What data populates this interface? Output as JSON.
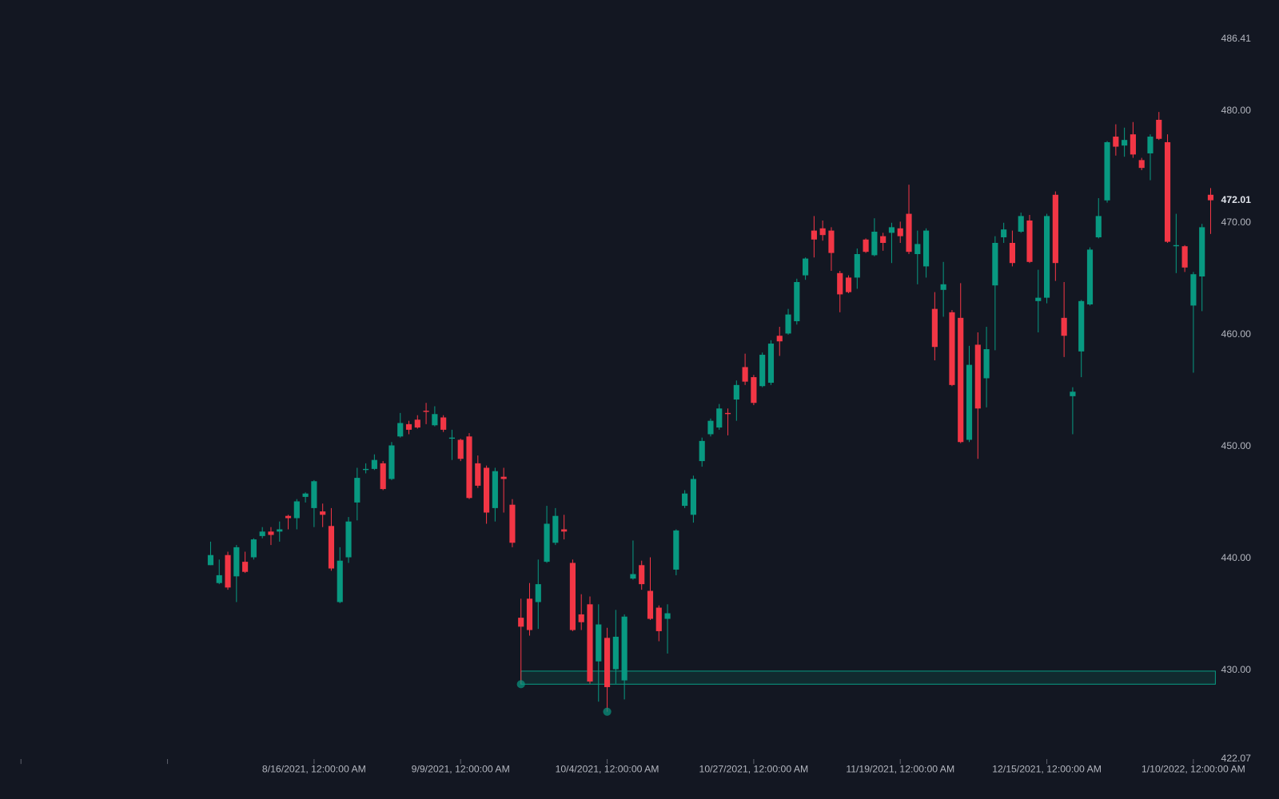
{
  "chart_data": {
    "type": "candlestick",
    "up_color": "#089981",
    "down_color": "#f23645",
    "open": [
      439.4,
      437.8,
      440.3,
      438.4,
      439.7,
      440.1,
      442.0,
      442.4,
      442.4,
      443.8,
      443.6,
      445.5,
      444.5,
      444.2,
      442.9,
      436.1,
      440.1,
      445.0,
      447.9,
      448.0,
      448.5,
      447.1,
      450.9,
      452.0,
      452.4,
      453.2,
      451.9,
      452.6,
      450.7,
      450.6,
      450.9,
      448.5,
      448.1,
      444.5,
      447.3,
      444.8,
      434.7,
      436.4,
      436.1,
      439.7,
      441.4,
      442.6,
      439.6,
      435.0,
      435.9,
      430.8,
      432.9,
      430.1,
      429.1,
      438.2,
      439.4,
      437.1,
      435.6,
      434.6,
      439.0,
      444.7,
      443.9,
      448.7,
      451.1,
      451.7,
      453.0,
      454.2,
      457.1,
      456.2,
      455.4,
      455.7,
      459.9,
      460.1,
      461.2,
      465.3,
      469.3,
      469.5,
      469.3,
      465.5,
      465.1,
      465.1,
      468.5,
      467.1,
      468.8,
      469.1,
      469.5,
      470.8,
      467.2,
      466.1,
      462.3,
      464.0,
      462.0,
      461.5,
      450.6,
      459.1,
      456.1,
      464.4,
      468.7,
      468.2,
      469.2,
      470.2,
      463.0,
      463.3,
      472.5,
      461.5,
      454.5,
      458.5,
      462.7,
      468.7,
      472.0,
      477.7,
      476.9,
      477.9,
      475.6,
      476.2,
      479.2,
      477.2,
      467.9,
      467.9,
      462.6,
      465.2,
      472.5
    ],
    "high": [
      441.5,
      439.9,
      440.6,
      441.2,
      440.6,
      441.8,
      442.8,
      442.8,
      443.3,
      443.9,
      445.3,
      445.9,
      447.0,
      444.9,
      444.5,
      441.0,
      443.7,
      448.1,
      448.5,
      449.3,
      448.7,
      450.4,
      453.0,
      452.3,
      452.8,
      453.9,
      453.6,
      452.8,
      451.5,
      450.7,
      451.2,
      449.2,
      448.3,
      448.1,
      448.1,
      445.3,
      436.4,
      437.8,
      439.9,
      444.7,
      444.5,
      443.9,
      439.9,
      436.8,
      436.6,
      435.9,
      433.8,
      435.4,
      435.0,
      441.6,
      439.8,
      440.1,
      435.8,
      435.9,
      442.6,
      446.1,
      447.4,
      450.8,
      452.5,
      453.8,
      453.4,
      455.9,
      458.3,
      456.4,
      458.4,
      459.5,
      460.7,
      462.3,
      465.0,
      466.9,
      470.6,
      470.2,
      469.6,
      465.7,
      465.3,
      467.7,
      468.6,
      470.4,
      469.1,
      470.0,
      470.1,
      473.4,
      469.3,
      469.5,
      463.8,
      466.5,
      462.2,
      464.6,
      459.0,
      460.2,
      460.7,
      468.8,
      470.0,
      469.3,
      470.9,
      470.7,
      465.8,
      470.8,
      472.8,
      464.7,
      455.3,
      463.1,
      467.8,
      472.2,
      477.3,
      478.8,
      478.5,
      479.0,
      475.8,
      477.9,
      479.9,
      477.9,
      470.8,
      468.0,
      465.6,
      469.9,
      473.1
    ],
    "low": [
      439.4,
      437.7,
      437.2,
      436.1,
      438.7,
      439.9,
      441.8,
      441.2,
      441.5,
      442.6,
      442.6,
      445.0,
      442.8,
      442.8,
      438.9,
      436.0,
      439.6,
      443.4,
      447.6,
      447.9,
      446.1,
      447.0,
      450.8,
      451.1,
      451.6,
      452.0,
      451.8,
      451.3,
      448.8,
      448.7,
      445.3,
      446.3,
      443.1,
      443.3,
      444.1,
      441.0,
      428.76,
      433.1,
      433.7,
      439.6,
      441.2,
      441.7,
      433.5,
      433.6,
      428.8,
      427.2,
      426.3,
      428.8,
      427.4,
      438.1,
      437.2,
      434.5,
      432.6,
      431.5,
      438.5,
      444.5,
      443.2,
      448.2,
      450.9,
      451.5,
      451.0,
      452.3,
      455.5,
      453.7,
      455.3,
      455.5,
      458.1,
      460.0,
      460.9,
      464.9,
      466.9,
      468.4,
      465.7,
      462.0,
      463.7,
      464.1,
      467.3,
      467.0,
      467.5,
      466.4,
      468.2,
      467.2,
      464.5,
      465.1,
      457.7,
      461.6,
      455.4,
      450.3,
      450.4,
      448.9,
      453.5,
      458.6,
      468.2,
      466.1,
      469.1,
      466.4,
      460.2,
      462.8,
      464.8,
      458.0,
      451.1,
      456.2,
      462.6,
      468.6,
      471.8,
      476.0,
      475.9,
      475.8,
      474.7,
      473.8,
      477.4,
      468.2,
      465.5,
      465.6,
      456.6,
      462.1,
      469.0
    ],
    "close": [
      440.3,
      438.5,
      437.4,
      441.0,
      438.8,
      441.7,
      442.4,
      442.1,
      442.6,
      443.6,
      445.1,
      445.8,
      446.9,
      443.9,
      439.1,
      439.8,
      443.3,
      447.2,
      448.0,
      448.8,
      446.2,
      450.1,
      452.1,
      451.5,
      451.7,
      453.1,
      452.9,
      451.5,
      450.8,
      448.9,
      445.4,
      446.5,
      444.1,
      447.8,
      447.1,
      441.4,
      433.9,
      433.6,
      437.7,
      443.1,
      443.8,
      442.4,
      433.6,
      434.3,
      429.0,
      434.1,
      428.5,
      433.0,
      434.8,
      438.6,
      437.7,
      434.6,
      433.5,
      435.1,
      442.5,
      445.8,
      447.1,
      450.5,
      452.3,
      453.4,
      452.9,
      455.5,
      455.8,
      453.9,
      458.2,
      459.2,
      459.4,
      461.8,
      464.7,
      466.8,
      468.5,
      468.9,
      467.3,
      463.6,
      463.8,
      467.2,
      467.4,
      469.2,
      468.2,
      469.6,
      468.8,
      467.4,
      468.1,
      469.3,
      458.9,
      464.5,
      455.5,
      450.4,
      457.3,
      453.4,
      458.7,
      468.2,
      469.4,
      466.4,
      470.6,
      466.5,
      463.3,
      470.6,
      466.4,
      459.9,
      454.9,
      463.0,
      467.6,
      470.6,
      477.2,
      476.8,
      477.4,
      476.1,
      474.9,
      477.7,
      477.5,
      468.3,
      468.0,
      466.0,
      465.4,
      469.6,
      472.01
    ],
    "zone": {
      "start": 36,
      "low": 428.76,
      "high": 429.93,
      "color": "#089981"
    },
    "markers": [
      36,
      46
    ],
    "xlim": [
      -24.43,
      116.55
    ],
    "xticks": [
      {
        "value": -22,
        "label": null
      },
      {
        "value": -5,
        "label": null
      },
      {
        "value": 12,
        "label": "8/16/2021, 12:00:00 AM"
      },
      {
        "value": 29,
        "label": "9/9/2021, 12:00:00 AM"
      },
      {
        "value": 46,
        "label": "10/4/2021, 12:00:00 AM"
      },
      {
        "value": 63,
        "label": "10/27/2021, 12:00:00 AM"
      },
      {
        "value": 80,
        "label": "11/19/2021, 12:00:00 AM"
      },
      {
        "value": 97,
        "label": "12/15/2021, 12:00:00 AM"
      },
      {
        "value": 114,
        "label": "1/10/2022, 12:00:00 AM"
      }
    ],
    "ylim": [
      422.07,
      486.41
    ],
    "yticks": [
      486.41,
      {
        "value": 480,
        "label": "480.00"
      },
      {
        "value": 470,
        "label": "470.00"
      },
      {
        "value": 460,
        "label": "460.00"
      },
      {
        "value": 450,
        "label": "450.00"
      },
      {
        "value": 440,
        "label": "440.00"
      },
      {
        "value": 430,
        "label": "430.00"
      },
      422.07
    ],
    "grid": false
  }
}
